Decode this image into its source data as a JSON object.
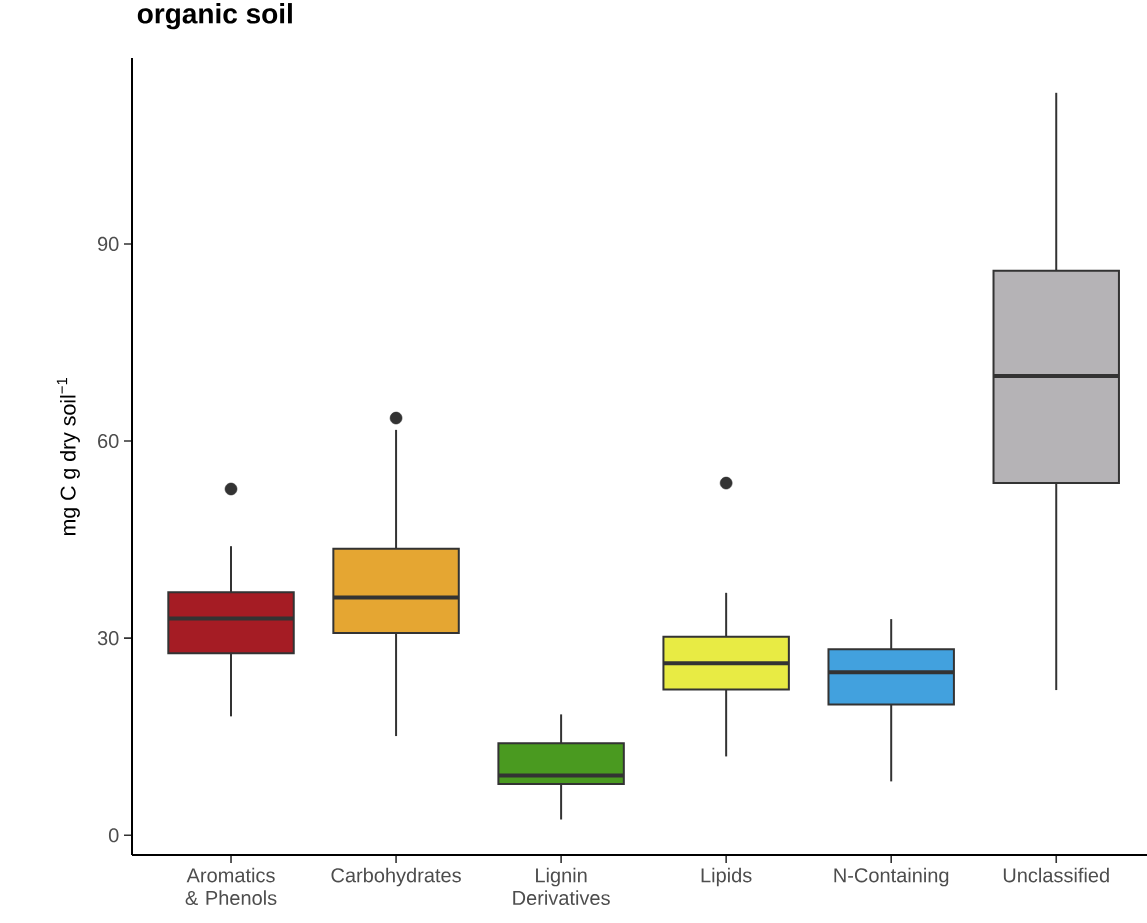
{
  "chart_data": {
    "type": "box",
    "title": "organic soil",
    "ylabel": "mg C g dry soil$^{−1}$",
    "categories": [
      "Aromatics & Phenols",
      "Carbohydrates",
      "Lignin Derivatives",
      "Lipids",
      "N-Containing",
      "Unclassified"
    ],
    "colors": [
      "#a51c24",
      "#e5a632",
      "#4a9a20",
      "#e8eb44",
      "#42a1de",
      "#b5b3b6"
    ],
    "boxes": [
      {
        "low": 18.1,
        "q1": 27.7,
        "median": 33.0,
        "q3": 37.0,
        "high": 44.0,
        "outliers": [
          52.7
        ]
      },
      {
        "low": 15.1,
        "q1": 30.8,
        "median": 36.2,
        "q3": 43.6,
        "high": 61.7,
        "outliers": [
          63.5
        ]
      },
      {
        "low": 2.4,
        "q1": 7.8,
        "median": 9.1,
        "q3": 14.0,
        "high": 18.4
      },
      {
        "low": 12.0,
        "q1": 22.2,
        "median": 26.2,
        "q3": 30.2,
        "high": 36.9,
        "outliers": [
          53.6
        ]
      },
      {
        "low": 8.2,
        "q1": 19.9,
        "median": 24.8,
        "q3": 28.3,
        "high": 32.9
      },
      {
        "low": 22.1,
        "q1": 53.6,
        "median": 69.9,
        "q3": 85.9,
        "high": 113.0
      }
    ],
    "ylim": [
      -3,
      118.3
    ],
    "yticks": [
      0,
      30,
      60,
      90
    ]
  }
}
